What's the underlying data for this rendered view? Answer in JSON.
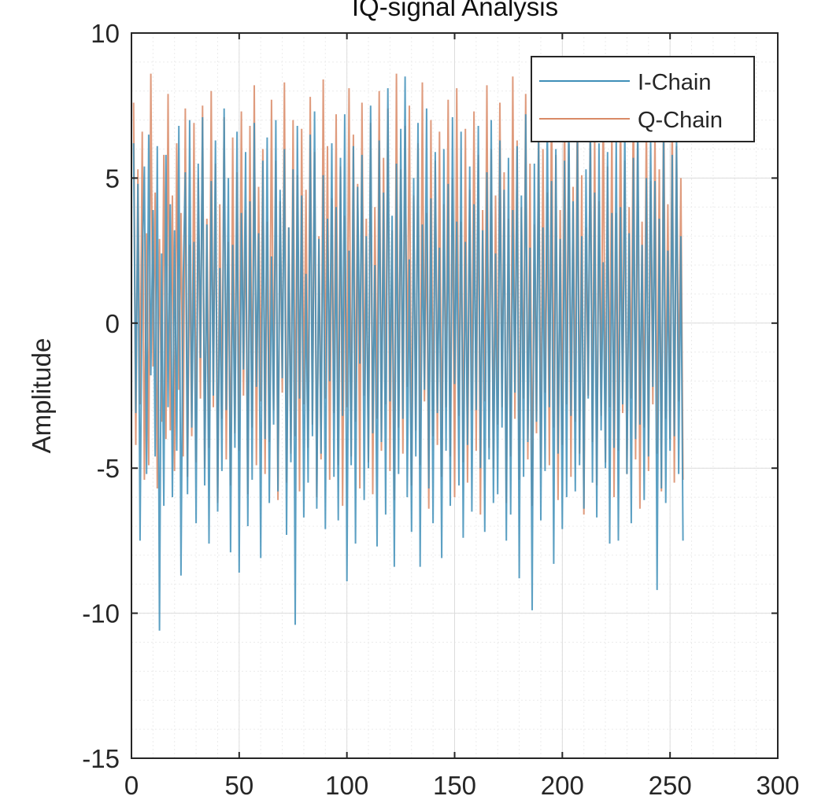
{
  "chart_data": {
    "type": "line",
    "title": "IQ-signal Analysis",
    "xlabel": "",
    "ylabel": "Amplitude",
    "xlim": [
      0,
      300
    ],
    "ylim": [
      -15,
      10
    ],
    "xticks": [
      "0",
      "50",
      "100",
      "150",
      "200",
      "250",
      "300"
    ],
    "yticks": [
      "10",
      "5",
      "0",
      "-5",
      "-10",
      "-15"
    ],
    "grid": true,
    "minor_grid": true,
    "legend_position": "top-right",
    "series": [
      {
        "name": "I-Chain",
        "color": "#3f8fb8",
        "values": [
          6.2,
          -3.1,
          4.8,
          -7.5,
          2.1,
          5.4,
          -5.2,
          6.5,
          -1.8,
          3.9,
          -4.6,
          6.1,
          -10.6,
          2.4,
          -6.3,
          5.8,
          -2.9,
          4.1,
          -6.0,
          3.2,
          -4.4,
          6.8,
          -8.7,
          1.5,
          5.2,
          -5.9,
          7.0,
          -3.6,
          2.8,
          -6.9,
          5.5,
          -1.2,
          7.1,
          -5.6,
          3.4,
          -7.6,
          4.9,
          -2.5,
          6.3,
          -6.5,
          1.9,
          -5.1,
          7.4,
          -3.0,
          5.0,
          -7.9,
          2.7,
          -4.3,
          6.6,
          -8.6,
          3.8,
          -1.6,
          5.9,
          -7.0,
          4.2,
          -5.4,
          6.9,
          -2.2,
          3.1,
          -8.1,
          5.6,
          -4.0,
          6.4,
          -6.2,
          2.3,
          -3.5,
          7.0,
          -5.8,
          4.6,
          -1.9,
          6.0,
          -7.3,
          3.3,
          -4.8,
          5.3,
          -10.4,
          6.8,
          -2.6,
          4.4,
          -6.7,
          1.7,
          -5.5,
          6.5,
          -3.9,
          7.3,
          -6.4,
          2.9,
          -4.5,
          5.1,
          -7.1,
          3.6,
          -2.0,
          6.2,
          -5.3,
          4.0,
          -6.8,
          5.7,
          -3.2,
          7.2,
          -8.9,
          2.5,
          -4.9,
          6.1,
          -7.6,
          4.7,
          -1.4,
          5.8,
          -6.1,
          3.0,
          -5.0,
          7.5,
          -3.8,
          2.0,
          -7.7,
          6.3,
          -4.1,
          4.5,
          -6.6,
          8.1,
          -2.7,
          3.7,
          -8.4,
          5.5,
          -5.2,
          6.7,
          -3.3,
          8.5,
          -6.0,
          2.2,
          -7.2,
          5.0,
          -4.6,
          6.9,
          -8.4,
          3.4,
          -2.3,
          7.4,
          -5.7,
          4.3,
          -6.9,
          5.9,
          -3.1,
          2.6,
          -8.1,
          6.0,
          -4.4,
          4.8,
          -6.3,
          7.1,
          -2.1,
          3.5,
          -5.6,
          6.6,
          -7.4,
          2.8,
          -4.2,
          5.4,
          -6.5,
          4.1,
          -3.0,
          6.8,
          -5.0,
          3.2,
          -7.2,
          5.2,
          -4.7,
          7.0,
          -6.2,
          2.4,
          -5.9,
          6.3,
          -3.6,
          4.6,
          -7.5,
          5.7,
          -6.6,
          3.9,
          -2.4,
          6.1,
          -8.8,
          4.4,
          -5.3,
          7.2,
          -4.1,
          2.6,
          -9.9,
          5.5,
          -3.4,
          6.5,
          -6.8,
          3.3,
          -5.1,
          7.3,
          -2.9,
          4.9,
          -8.3,
          6.0,
          -4.5,
          2.9,
          -7.1,
          5.6,
          -6.0,
          7.6,
          -3.2,
          4.2,
          -5.8,
          6.4,
          -4.9,
          3.0,
          -6.4,
          5.3,
          -2.6,
          7.0,
          -5.5,
          4.5,
          -6.7,
          6.2,
          -3.7,
          2.1,
          -5.0,
          5.9,
          -7.6,
          3.8,
          -4.3,
          6.6,
          -7.5,
          4.0,
          -2.8,
          6.9,
          -5.2,
          3.1,
          -6.9,
          5.7,
          -4.0,
          7.1,
          -3.5,
          2.7,
          -6.1,
          5.0,
          -4.6,
          6.3,
          -2.2,
          4.9,
          -9.2,
          3.6,
          -5.7,
          6.8,
          -6.2,
          2.5,
          -4.4,
          5.8,
          -3.9,
          6.4,
          -5.2,
          3.0,
          -7.5
        ]
      },
      {
        "name": "Q-Chain",
        "color": "#d98a66",
        "values": [
          7.6,
          -4.2,
          5.3,
          -2.8,
          6.6,
          -5.4,
          3.1,
          -4.9,
          8.6,
          -1.5,
          4.5,
          -5.7,
          2.9,
          -3.4,
          5.8,
          -4.0,
          7.9,
          -3.7,
          4.4,
          -5.1,
          6.2,
          -2.3,
          3.8,
          -4.6,
          7.4,
          -5.3,
          2.7,
          -3.9,
          6.9,
          -4.8,
          5.0,
          -2.6,
          7.5,
          -5.0,
          3.6,
          -4.3,
          8.0,
          -2.9,
          5.5,
          -6.2,
          4.1,
          -3.3,
          7.1,
          -4.7,
          2.8,
          -5.6,
          6.4,
          -3.8,
          5.2,
          -4.4,
          7.3,
          -2.5,
          3.9,
          -5.9,
          6.8,
          -3.6,
          8.2,
          -4.9,
          4.7,
          -2.7,
          6.0,
          -5.2,
          3.5,
          -4.1,
          7.7,
          -3.0,
          5.6,
          -6.1,
          4.2,
          -2.4,
          8.3,
          -5.5,
          3.3,
          -4.5,
          7.0,
          -3.9,
          5.1,
          -5.8,
          6.7,
          -2.8,
          4.6,
          -4.3,
          7.8,
          -3.5,
          5.9,
          -6.0,
          3.0,
          -4.7,
          8.4,
          -2.6,
          6.1,
          -5.4,
          4.3,
          -3.1,
          7.2,
          -4.9,
          5.4,
          -6.3,
          3.7,
          -2.9,
          8.1,
          -4.6,
          6.5,
          -3.4,
          4.8,
          -5.7,
          7.6,
          -2.5,
          3.6,
          -4.8,
          6.9,
          -5.9,
          4.0,
          -3.3,
          8.0,
          -4.4,
          5.7,
          -2.8,
          7.4,
          -5.1,
          3.2,
          -6.1,
          8.6,
          -3.6,
          5.3,
          -4.5,
          6.8,
          -2.2,
          7.5,
          -5.6,
          4.4,
          -3.7,
          6.2,
          -4.9,
          8.3,
          -2.7,
          3.8,
          -6.4,
          7.0,
          -3.9,
          5.6,
          -4.2,
          6.6,
          -5.3,
          4.1,
          -2.9,
          7.7,
          -4.6,
          5.0,
          -6.0,
          8.1,
          -3.2,
          3.5,
          -4.8,
          6.7,
          -5.5,
          4.6,
          -3.0,
          7.3,
          -4.4,
          5.8,
          -6.6,
          3.9,
          -2.7,
          8.2,
          -4.3,
          6.0,
          -5.0,
          4.4,
          -3.5,
          7.6,
          -2.9,
          5.2,
          -6.2,
          3.6,
          -4.6,
          8.5,
          -3.3,
          6.3,
          -5.4,
          4.0,
          -2.6,
          7.9,
          -4.7,
          5.5,
          -6.3,
          3.4,
          -3.8,
          7.1,
          -5.0,
          6.0,
          -2.4,
          4.5,
          -4.9,
          8.0,
          -3.6,
          5.8,
          -6.1,
          3.9,
          -4.2,
          7.5,
          -2.8,
          6.2,
          -5.3,
          4.7,
          -3.4,
          8.3,
          -4.5,
          5.1,
          -6.6,
          3.3,
          -2.5,
          7.3,
          -4.1,
          6.6,
          -5.6,
          4.2,
          -3.2,
          8.0,
          -4.8,
          5.4,
          -2.9,
          6.9,
          -6.0,
          3.8,
          -4.4,
          7.8,
          -3.1,
          5.6,
          -5.2,
          4.0,
          -2.6,
          8.1,
          -4.7,
          6.4,
          -6.4,
          3.5,
          -3.6,
          7.2,
          -5.1,
          4.9,
          -2.8,
          6.7,
          -4.5,
          5.3,
          -5.8,
          8.2,
          -3.3,
          4.1,
          -4.0,
          7.4,
          -5.5,
          6.1,
          -2.7,
          5.0,
          -5.4
        ]
      }
    ]
  }
}
